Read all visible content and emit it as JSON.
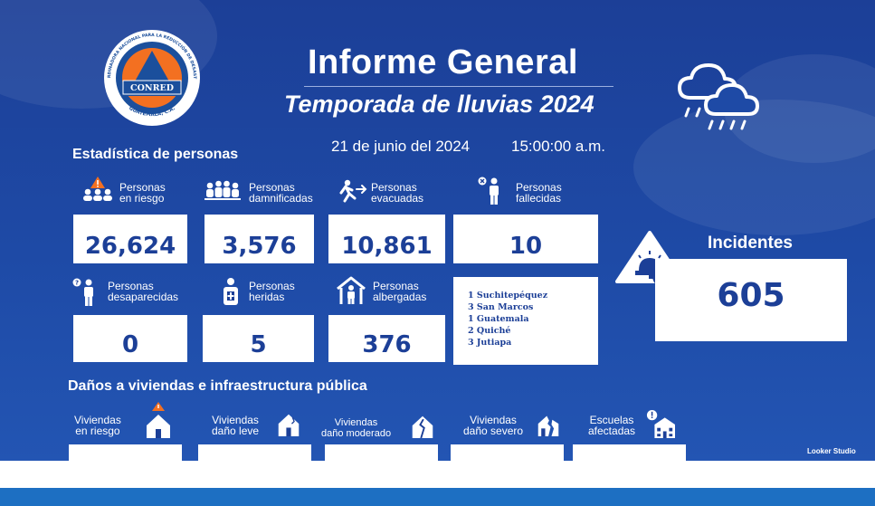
{
  "header": {
    "logo": {
      "org_arc_text": "COORDINADORA NACIONAL PARA LA REDUCCIÓN DE DESASTRES",
      "name": "CONRED",
      "country": "GUATEMALA, C.A."
    },
    "title": "Informe General",
    "subtitle": "Temporada de lluvias 2024",
    "date": "21 de junio del 2024",
    "time": "15:00:00 a.m.",
    "weather_icon": "rain-cloud-icon"
  },
  "personas": {
    "section_title": "Estadística de personas",
    "stats": [
      {
        "label": [
          "Personas",
          "en riesgo"
        ],
        "value": "26,624",
        "icon": "people-at-risk-icon"
      },
      {
        "label": [
          "Personas",
          "damnificadas"
        ],
        "value": "3,576",
        "icon": "group-people-icon"
      },
      {
        "label": [
          "Personas",
          "evacuadas"
        ],
        "value": "10,861",
        "icon": "running-person-icon"
      },
      {
        "label": [
          "Personas",
          "fallecidas"
        ],
        "value": "10",
        "icon": "deceased-person-icon"
      },
      {
        "label": [
          "Personas",
          "desaparecidas"
        ],
        "value": "0",
        "icon": "missing-person-icon"
      },
      {
        "label": [
          "Personas",
          "heridas"
        ],
        "value": "5",
        "icon": "injured-person-icon"
      },
      {
        "label": [
          "Personas",
          "albergadas"
        ],
        "value": "376",
        "icon": "shelter-icon"
      }
    ],
    "fallecidas_detalle": [
      "1 Suchitepéquez",
      "3 San Marcos",
      "1 Guatemala",
      "2 Quiché",
      "3 Jutiapa"
    ]
  },
  "incidentes": {
    "title": "Incidentes",
    "value": "605",
    "icon": "alarm-gear-icon"
  },
  "viviendas": {
    "section_title": "Daños a viviendas e infraestructura pública",
    "items": [
      {
        "label": [
          "Viviendas",
          "en riesgo"
        ],
        "icon": "house-warning-icon"
      },
      {
        "label": [
          "Viviendas",
          "daño leve"
        ],
        "icon": "house-minor-damage-icon"
      },
      {
        "label": [
          "Viviendas",
          "daño moderado"
        ],
        "icon": "house-moderate-damage-icon"
      },
      {
        "label": [
          "Viviendas",
          "daño severo"
        ],
        "icon": "house-severe-damage-icon"
      },
      {
        "label": [
          "Escuelas",
          "afectadas"
        ],
        "icon": "school-icon"
      }
    ]
  },
  "footer": {
    "watermark": "Looker Studio"
  },
  "colors": {
    "background": "#1c3f97",
    "card": "#ffffff",
    "value_text": "#1c3f97",
    "logo_orange": "#f37021",
    "logo_blue": "#1b4f9c"
  }
}
